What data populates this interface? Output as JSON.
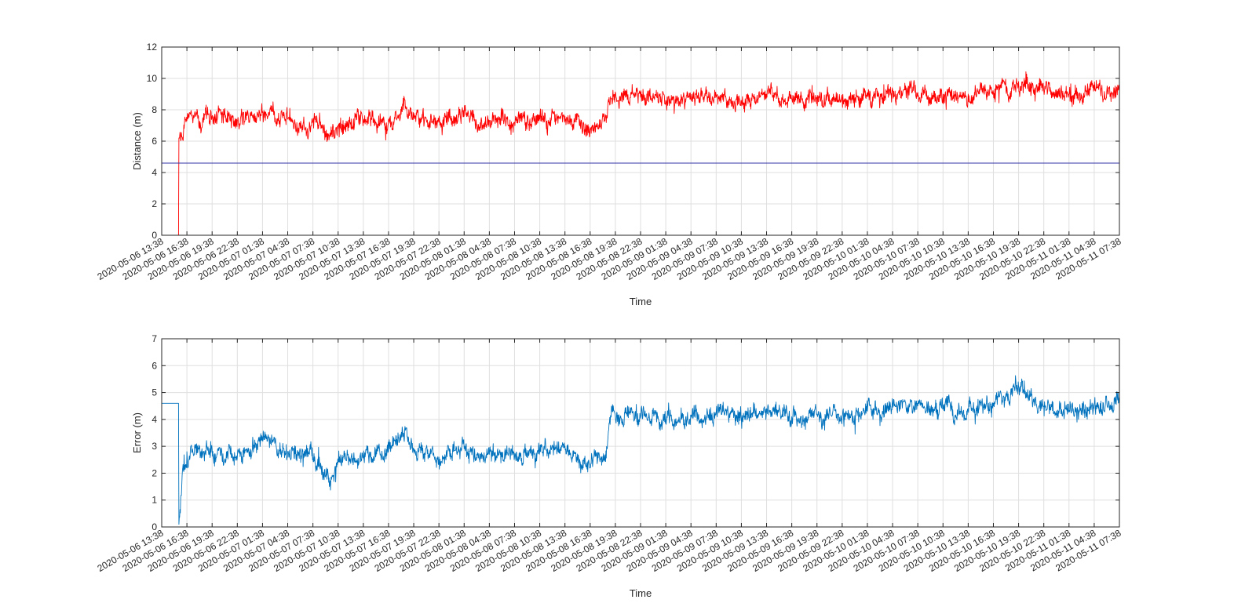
{
  "figure": {
    "background": "#ffffff",
    "grid_color": "#dfdfdf",
    "axis_color": "#262626"
  },
  "chart_data": [
    {
      "type": "line",
      "xlabel": "Time",
      "ylabel": "Distance (m)",
      "ylim": [
        0,
        12
      ],
      "yticks": [
        "0",
        "2",
        "4",
        "6",
        "8",
        "10",
        "12"
      ],
      "x_start": "2020-05-06 13:38",
      "x_end": "2020-05-11 07:38",
      "xticks": [
        "2020-05-06 13:38",
        "2020-05-06 16:38",
        "2020-05-06 19:38",
        "2020-05-06 22:38",
        "2020-05-07 01:38",
        "2020-05-07 04:38",
        "2020-05-07 07:38",
        "2020-05-07 10:38",
        "2020-05-07 13:38",
        "2020-05-07 16:38",
        "2020-05-07 19:38",
        "2020-05-07 22:38",
        "2020-05-08 01:38",
        "2020-05-08 04:38",
        "2020-05-08 07:38",
        "2020-05-08 10:38",
        "2020-05-08 13:38",
        "2020-05-08 16:38",
        "2020-05-08 19:38",
        "2020-05-08 22:38",
        "2020-05-09 01:38",
        "2020-05-09 04:38",
        "2020-05-09 07:38",
        "2020-05-09 10:38",
        "2020-05-09 13:38",
        "2020-05-09 16:38",
        "2020-05-09 19:38",
        "2020-05-09 22:38",
        "2020-05-10 01:38",
        "2020-05-10 04:38",
        "2020-05-10 07:38",
        "2020-05-10 10:38",
        "2020-05-10 13:38",
        "2020-05-10 16:38",
        "2020-05-10 19:38",
        "2020-05-10 22:38",
        "2020-05-11 01:38",
        "2020-05-11 04:38",
        "2020-05-11 07:38"
      ],
      "grid": true,
      "series": [
        {
          "color": "#ff0000",
          "style": "noisy",
          "points": [
            [
              "2020-05-06 13:38",
              0
            ],
            [
              "2020-05-06 15:38",
              0
            ],
            [
              "2020-05-06 15:41",
              6.2
            ],
            [
              "2020-05-06 16:38",
              7.3
            ],
            [
              "2020-05-06 19:38",
              7.6
            ],
            [
              "2020-05-06 22:38",
              7.3
            ],
            [
              "2020-05-07 01:38",
              7.9
            ],
            [
              "2020-05-07 04:38",
              7.4
            ],
            [
              "2020-05-07 07:38",
              7.3
            ],
            [
              "2020-05-07 09:38",
              6.4
            ],
            [
              "2020-05-07 10:38",
              7.0
            ],
            [
              "2020-05-07 13:38",
              7.2
            ],
            [
              "2020-05-07 16:38",
              7.4
            ],
            [
              "2020-05-07 18:38",
              8.1
            ],
            [
              "2020-05-07 19:38",
              7.5
            ],
            [
              "2020-05-07 22:38",
              7.2
            ],
            [
              "2020-05-08 01:38",
              7.6
            ],
            [
              "2020-05-08 04:38",
              7.3
            ],
            [
              "2020-05-08 07:38",
              7.2
            ],
            [
              "2020-05-08 10:38",
              7.4
            ],
            [
              "2020-05-08 13:38",
              7.6
            ],
            [
              "2020-05-08 16:38",
              6.8
            ],
            [
              "2020-05-08 18:38",
              7.6
            ],
            [
              "2020-05-08 19:08",
              8.7
            ],
            [
              "2020-05-08 22:38",
              8.8
            ],
            [
              "2020-05-09 01:38",
              8.6
            ],
            [
              "2020-05-09 04:38",
              8.7
            ],
            [
              "2020-05-09 07:38",
              8.8
            ],
            [
              "2020-05-09 10:38",
              8.6
            ],
            [
              "2020-05-09 13:38",
              9.0
            ],
            [
              "2020-05-09 16:38",
              8.7
            ],
            [
              "2020-05-09 19:38",
              8.8
            ],
            [
              "2020-05-09 22:38",
              8.7
            ],
            [
              "2020-05-10 01:38",
              8.9
            ],
            [
              "2020-05-10 04:38",
              9.2
            ],
            [
              "2020-05-10 07:38",
              9.1
            ],
            [
              "2020-05-10 10:38",
              9.0
            ],
            [
              "2020-05-10 13:38",
              9.0
            ],
            [
              "2020-05-10 16:38",
              9.1
            ],
            [
              "2020-05-10 19:38",
              9.8
            ],
            [
              "2020-05-10 22:38",
              9.2
            ],
            [
              "2020-05-11 01:38",
              9.0
            ],
            [
              "2020-05-11 04:38",
              9.3
            ],
            [
              "2020-05-11 07:38",
              9.2
            ]
          ]
        },
        {
          "color": "#3333aa",
          "style": "flat",
          "points": [
            [
              "2020-05-06 13:38",
              4.6
            ],
            [
              "2020-05-11 07:38",
              4.6
            ]
          ]
        }
      ]
    },
    {
      "type": "line",
      "xlabel": "Time",
      "ylabel": "Error (m)",
      "ylim": [
        0,
        7
      ],
      "yticks": [
        "0",
        "1",
        "2",
        "3",
        "4",
        "5",
        "6",
        "7"
      ],
      "x_start": "2020-05-06 13:38",
      "x_end": "2020-05-11 07:38",
      "xticks": [
        "2020-05-06 13:38",
        "2020-05-06 16:38",
        "2020-05-06 19:38",
        "2020-05-06 22:38",
        "2020-05-07 01:38",
        "2020-05-07 04:38",
        "2020-05-07 07:38",
        "2020-05-07 10:38",
        "2020-05-07 13:38",
        "2020-05-07 16:38",
        "2020-05-07 19:38",
        "2020-05-07 22:38",
        "2020-05-08 01:38",
        "2020-05-08 04:38",
        "2020-05-08 07:38",
        "2020-05-08 10:38",
        "2020-05-08 13:38",
        "2020-05-08 16:38",
        "2020-05-08 19:38",
        "2020-05-08 22:38",
        "2020-05-09 01:38",
        "2020-05-09 04:38",
        "2020-05-09 07:38",
        "2020-05-09 10:38",
        "2020-05-09 13:38",
        "2020-05-09 16:38",
        "2020-05-09 19:38",
        "2020-05-09 22:38",
        "2020-05-10 01:38",
        "2020-05-10 04:38",
        "2020-05-10 07:38",
        "2020-05-10 10:38",
        "2020-05-10 13:38",
        "2020-05-10 16:38",
        "2020-05-10 19:38",
        "2020-05-10 22:38",
        "2020-05-11 01:38",
        "2020-05-11 04:38",
        "2020-05-11 07:38"
      ],
      "grid": true,
      "series": [
        {
          "color": "#0072bd",
          "style": "noisy",
          "points": [
            [
              "2020-05-06 13:38",
              4.6
            ],
            [
              "2020-05-06 15:38",
              4.6
            ],
            [
              "2020-05-06 15:41",
              0.1
            ],
            [
              "2020-05-06 16:08",
              2.2
            ],
            [
              "2020-05-06 16:38",
              2.8
            ],
            [
              "2020-05-06 19:38",
              2.9
            ],
            [
              "2020-05-06 22:38",
              2.6
            ],
            [
              "2020-05-07 01:38",
              3.2
            ],
            [
              "2020-05-07 04:38",
              2.8
            ],
            [
              "2020-05-07 07:38",
              2.6
            ],
            [
              "2020-05-07 09:38",
              1.6
            ],
            [
              "2020-05-07 10:38",
              2.4
            ],
            [
              "2020-05-07 13:38",
              2.6
            ],
            [
              "2020-05-07 16:38",
              2.8
            ],
            [
              "2020-05-07 18:38",
              3.6
            ],
            [
              "2020-05-07 19:38",
              2.9
            ],
            [
              "2020-05-07 22:38",
              2.6
            ],
            [
              "2020-05-08 01:38",
              2.9
            ],
            [
              "2020-05-08 04:38",
              2.7
            ],
            [
              "2020-05-08 07:38",
              2.6
            ],
            [
              "2020-05-08 10:38",
              2.8
            ],
            [
              "2020-05-08 13:38",
              3.0
            ],
            [
              "2020-05-08 16:38",
              2.2
            ],
            [
              "2020-05-08 18:38",
              2.9
            ],
            [
              "2020-05-08 19:08",
              4.1
            ],
            [
              "2020-05-08 22:38",
              4.1
            ],
            [
              "2020-05-09 01:38",
              4.0
            ],
            [
              "2020-05-09 04:38",
              4.1
            ],
            [
              "2020-05-09 07:38",
              4.2
            ],
            [
              "2020-05-09 10:38",
              4.0
            ],
            [
              "2020-05-09 13:38",
              4.4
            ],
            [
              "2020-05-09 16:38",
              4.1
            ],
            [
              "2020-05-09 19:38",
              4.2
            ],
            [
              "2020-05-09 22:38",
              4.1
            ],
            [
              "2020-05-10 01:38",
              4.3
            ],
            [
              "2020-05-10 04:38",
              4.6
            ],
            [
              "2020-05-10 07:38",
              4.5
            ],
            [
              "2020-05-10 10:38",
              4.4
            ],
            [
              "2020-05-10 13:38",
              4.4
            ],
            [
              "2020-05-10 16:38",
              4.5
            ],
            [
              "2020-05-10 19:38",
              5.2
            ],
            [
              "2020-05-10 22:38",
              4.5
            ],
            [
              "2020-05-11 01:38",
              4.3
            ],
            [
              "2020-05-11 04:38",
              4.6
            ],
            [
              "2020-05-11 07:38",
              4.6
            ]
          ]
        }
      ]
    }
  ]
}
